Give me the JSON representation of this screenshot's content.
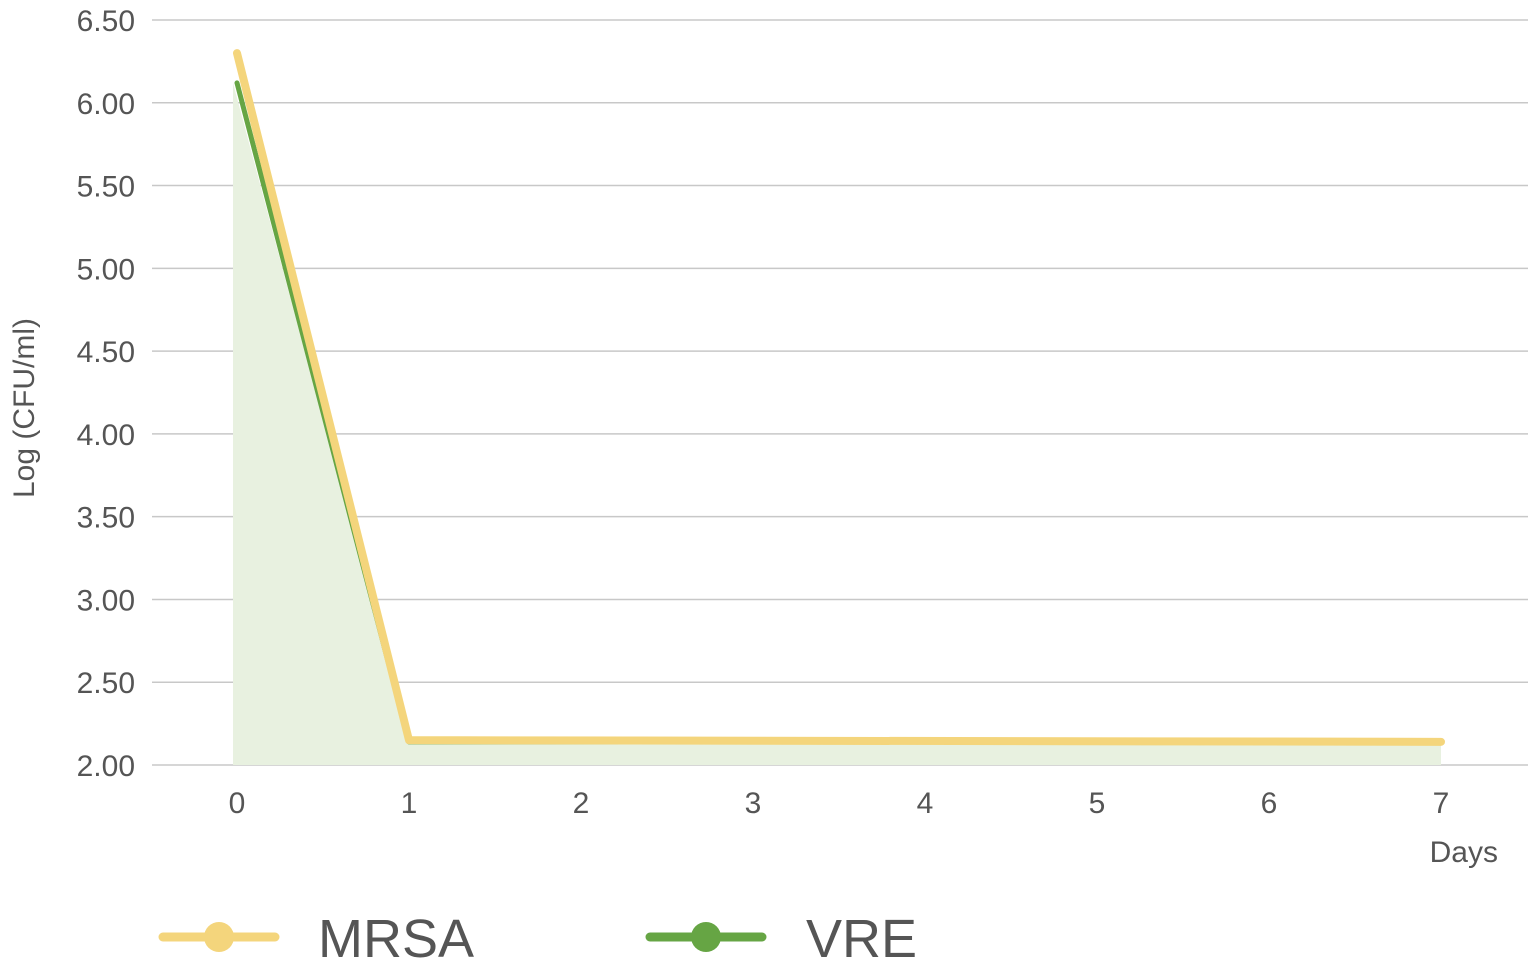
{
  "chart_data": {
    "type": "line",
    "title": "",
    "xlabel": "Days",
    "ylabel": "Log (CFU/ml)",
    "x": [
      0,
      1,
      2,
      3,
      4,
      5,
      6,
      7
    ],
    "x_tick_labels": [
      "0",
      "1",
      "2",
      "3",
      "4",
      "5",
      "6",
      "7"
    ],
    "y_tick_labels": [
      "2.00",
      "2.50",
      "3.00",
      "3.50",
      "4.00",
      "4.50",
      "5.00",
      "5.50",
      "6.00",
      "6.50"
    ],
    "ylim": [
      2.0,
      6.5
    ],
    "xlim": [
      -0.5,
      7.5
    ],
    "grid": true,
    "legend_position": "bottom",
    "series": [
      {
        "name": "MRSA",
        "color": "#f4d57c",
        "points": [
          [
            0,
            6.3
          ],
          [
            1.0,
            2.15
          ],
          [
            7.0,
            2.14
          ]
        ]
      },
      {
        "name": "VRE",
        "color": "#66a544",
        "fill": "#e8f1e0",
        "points": [
          [
            0,
            6.12
          ],
          [
            1.0,
            2.14
          ],
          [
            7.0,
            2.14
          ]
        ]
      }
    ]
  }
}
